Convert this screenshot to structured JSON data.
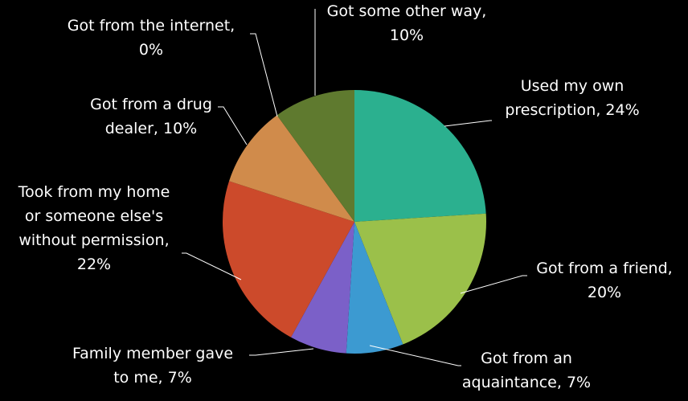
{
  "chart_data": {
    "type": "pie",
    "title": "",
    "legend": "none",
    "slices": [
      {
        "label_lines": [
          "Used my own",
          "prescription, 24%"
        ],
        "category": "Used my own prescription",
        "value": 24,
        "color": "#2bb08f"
      },
      {
        "label_lines": [
          "Got from a friend,",
          "20%"
        ],
        "category": "Got from a friend",
        "value": 20,
        "color": "#9bc04a"
      },
      {
        "label_lines": [
          "Got from an",
          "aquaintance, 7%"
        ],
        "category": "Got from an aquaintance",
        "value": 7,
        "color": "#3c9ad1"
      },
      {
        "label_lines": [
          "Family member gave",
          "to me, 7%"
        ],
        "category": "Family member gave to me",
        "value": 7,
        "color": "#7b60c8"
      },
      {
        "label_lines": [
          "Took from my home",
          "or someone else's",
          "without permission,",
          "22%"
        ],
        "category": "Took from my home or someone else's without permission",
        "value": 22,
        "color": "#cc4a2b"
      },
      {
        "label_lines": [
          "Got from a drug",
          "dealer, 10%"
        ],
        "category": "Got from a drug dealer",
        "value": 10,
        "color": "#d08b4b"
      },
      {
        "label_lines": [
          "Got from the internet,",
          "0%"
        ],
        "category": "Got from the internet",
        "value": 0,
        "color": "#8a8a8a"
      },
      {
        "label_lines": [
          "Got some other way,",
          "10%"
        ],
        "category": "Got some other way",
        "value": 10,
        "color": "#5f7a2f"
      }
    ]
  }
}
